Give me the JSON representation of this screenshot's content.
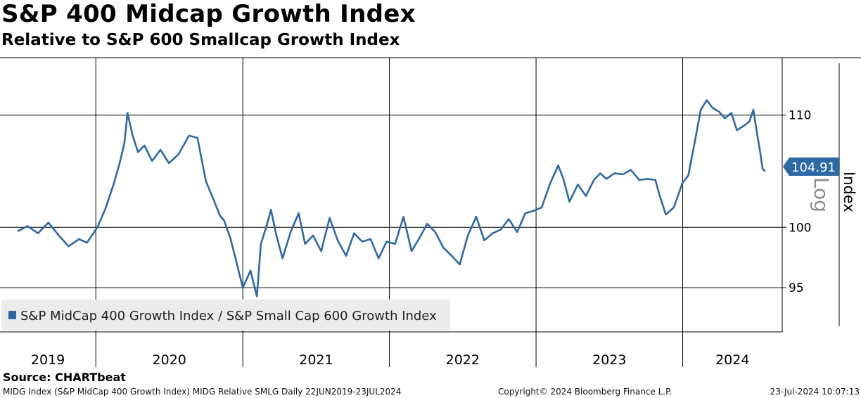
{
  "header": {
    "title": "S&P 400 Midcap Growth Index",
    "subtitle": "Relative to S&P 600 Smallcap Growth Index"
  },
  "source": "Source: CHARTbeat",
  "footer": {
    "left": "MIDG Index (S&P MidCap 400 Growth Index) MIDG Relative SMLG  Daily 22JUN2019-23JUL2024",
    "center": "Copyright© 2024 Bloomberg Finance L.P.",
    "right": "23-Jul-2024 10:07:13"
  },
  "colors": {
    "series": "#2e69a6",
    "grid": "#000000",
    "legend_bg": "#ebebeb"
  },
  "chart_data": {
    "type": "line",
    "ylabel": "Index",
    "y_scale_label": "Log",
    "y_scale": "log",
    "ylim": [
      91.5,
      115.5
    ],
    "y_ticks": [
      95,
      100,
      110
    ],
    "grid": true,
    "legend_placement": "bottom-left",
    "x_range": [
      "2019-06-22",
      "2024-07-23"
    ],
    "year_labels": [
      "2019",
      "2020",
      "2021",
      "2022",
      "2023",
      "2024"
    ],
    "last_value_label": "104.91",
    "series": [
      {
        "name": "S&P MidCap 400 Growth Index / S&P Small Cap 600 Growth Index",
        "x": [
          "2019-06-22",
          "2019-07-15",
          "2019-08-10",
          "2019-09-05",
          "2019-10-01",
          "2019-10-25",
          "2019-11-20",
          "2019-12-10",
          "2020-01-05",
          "2020-01-25",
          "2020-02-15",
          "2020-03-01",
          "2020-03-12",
          "2020-03-20",
          "2020-04-01",
          "2020-04-15",
          "2020-05-01",
          "2020-05-20",
          "2020-06-10",
          "2020-07-01",
          "2020-07-25",
          "2020-08-20",
          "2020-09-10",
          "2020-10-01",
          "2020-10-20",
          "2020-11-05",
          "2020-11-15",
          "2020-12-01",
          "2021-01-01",
          "2021-01-20",
          "2021-02-05",
          "2021-02-15",
          "2021-03-01",
          "2021-03-12",
          "2021-03-25",
          "2021-04-10",
          "2021-05-01",
          "2021-05-20",
          "2021-06-05",
          "2021-06-25",
          "2021-07-15",
          "2021-08-05",
          "2021-08-25",
          "2021-09-15",
          "2021-10-05",
          "2021-10-25",
          "2021-11-15",
          "2021-12-05",
          "2021-12-25",
          "2022-01-15",
          "2022-02-05",
          "2022-02-25",
          "2022-03-15",
          "2022-04-05",
          "2022-04-25",
          "2022-05-15",
          "2022-06-05",
          "2022-06-25",
          "2022-07-15",
          "2022-08-05",
          "2022-08-25",
          "2022-09-15",
          "2022-10-05",
          "2022-10-25",
          "2022-11-15",
          "2022-12-05",
          "2022-12-25",
          "2023-01-15",
          "2023-02-05",
          "2023-02-25",
          "2023-03-10",
          "2023-03-25",
          "2023-04-15",
          "2023-05-05",
          "2023-05-25",
          "2023-06-10",
          "2023-06-25",
          "2023-07-15",
          "2023-08-05",
          "2023-08-25",
          "2023-09-15",
          "2023-10-05",
          "2023-10-25",
          "2023-11-05",
          "2023-11-20",
          "2023-12-10",
          "2023-12-31",
          "2024-01-15",
          "2024-02-01",
          "2024-02-15",
          "2024-03-01",
          "2024-03-15",
          "2024-04-01",
          "2024-04-15",
          "2024-05-01",
          "2024-05-15",
          "2024-06-01",
          "2024-06-15",
          "2024-06-25",
          "2024-07-05",
          "2024-07-12",
          "2024-07-18",
          "2024-07-23"
        ],
        "values": [
          99.7,
          100.1,
          99.5,
          100.4,
          99.3,
          98.4,
          99.0,
          98.7,
          100.0,
          101.6,
          103.8,
          105.7,
          107.4,
          110.2,
          108.2,
          106.6,
          107.2,
          105.8,
          106.8,
          105.6,
          106.4,
          108.1,
          107.9,
          104.0,
          102.4,
          101.0,
          100.6,
          99.1,
          95.0,
          96.4,
          94.3,
          98.6,
          100.1,
          101.5,
          99.4,
          97.4,
          99.7,
          101.2,
          98.6,
          99.3,
          98.0,
          100.8,
          98.9,
          97.6,
          99.5,
          98.8,
          99.0,
          97.4,
          98.8,
          98.6,
          100.9,
          98.0,
          99.0,
          100.3,
          99.6,
          98.3,
          97.6,
          96.9,
          99.3,
          100.9,
          98.9,
          99.5,
          99.8,
          100.7,
          99.6,
          101.2,
          101.4,
          101.7,
          103.8,
          105.4,
          104.2,
          102.2,
          103.7,
          102.7,
          104.1,
          104.7,
          104.2,
          104.7,
          104.6,
          105.0,
          104.1,
          104.2,
          104.1,
          102.7,
          101.1,
          101.7,
          103.8,
          104.5,
          107.7,
          110.5,
          111.4,
          110.7,
          110.3,
          109.7,
          110.2,
          108.6,
          109.0,
          109.4,
          110.5,
          108.1,
          106.6,
          105.1,
          104.91
        ]
      }
    ]
  },
  "legend": {
    "label": "S&P MidCap 400 Growth Index / S&P Small Cap 600 Growth Index"
  }
}
